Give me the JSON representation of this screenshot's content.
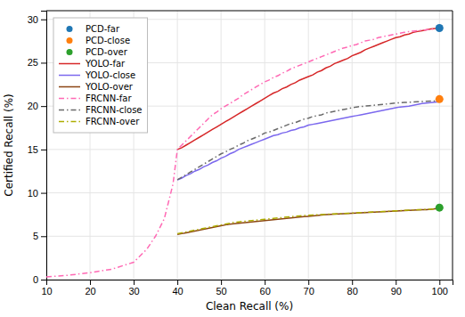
{
  "chart_data": {
    "type": "line",
    "xlabel": "Clean Recall (%)",
    "ylabel": "Certified Recall (%)",
    "xlim": [
      10,
      103
    ],
    "ylim": [
      0,
      31
    ],
    "xticks": [
      10,
      20,
      30,
      40,
      50,
      60,
      70,
      80,
      90,
      100
    ],
    "yticks": [
      0,
      5,
      10,
      15,
      20,
      25,
      30
    ],
    "grid": true,
    "legend": "upper left",
    "series": [
      {
        "name": "PCD-far",
        "type": "scatter",
        "color": "#1f77b4",
        "marker": "circle",
        "x": [
          100
        ],
        "values": [
          29.0
        ]
      },
      {
        "name": "PCD-close",
        "type": "scatter",
        "color": "#ff7f0e",
        "marker": "circle",
        "x": [
          100
        ],
        "values": [
          20.8
        ]
      },
      {
        "name": "PCD-over",
        "type": "scatter",
        "color": "#2ca02c",
        "marker": "circle",
        "x": [
          100
        ],
        "values": [
          8.3
        ]
      },
      {
        "name": "YOLO-far",
        "type": "line",
        "color": "#d62728",
        "line_style": "solid",
        "x": [
          40,
          41,
          42,
          43,
          44,
          45,
          46,
          47,
          48,
          49,
          50,
          51,
          52,
          53,
          54,
          55,
          56,
          57,
          58,
          59,
          60,
          61,
          62,
          63,
          64,
          65,
          66,
          67,
          68,
          69,
          70,
          71,
          72,
          73,
          74,
          75,
          76,
          77,
          78,
          79,
          80,
          81,
          82,
          83,
          84,
          85,
          86,
          87,
          88,
          89,
          90,
          91,
          92,
          93,
          94,
          95,
          96,
          97,
          98,
          99,
          100
        ],
        "values": [
          15.0,
          15.2,
          15.5,
          15.8,
          16.1,
          16.4,
          16.7,
          17.0,
          17.3,
          17.6,
          17.9,
          18.2,
          18.5,
          18.8,
          19.1,
          19.4,
          19.7,
          20.0,
          20.3,
          20.6,
          20.9,
          21.2,
          21.5,
          21.7,
          22.0,
          22.2,
          22.5,
          22.7,
          23.0,
          23.2,
          23.4,
          23.6,
          23.9,
          24.1,
          24.4,
          24.6,
          24.9,
          25.1,
          25.3,
          25.5,
          25.8,
          26.0,
          26.2,
          26.5,
          26.7,
          26.9,
          27.1,
          27.3,
          27.5,
          27.7,
          27.9,
          28.0,
          28.2,
          28.3,
          28.5,
          28.6,
          28.7,
          28.8,
          28.9,
          28.95,
          29.0
        ]
      },
      {
        "name": "YOLO-close",
        "type": "line",
        "color": "#7b68ee",
        "line_style": "solid",
        "x": [
          40,
          41,
          42,
          43,
          44,
          45,
          46,
          47,
          48,
          49,
          50,
          51,
          52,
          53,
          54,
          55,
          56,
          57,
          58,
          59,
          60,
          61,
          62,
          63,
          64,
          65,
          66,
          67,
          68,
          69,
          70,
          71,
          72,
          73,
          74,
          75,
          76,
          77,
          78,
          79,
          80,
          81,
          82,
          83,
          84,
          85,
          86,
          87,
          88,
          89,
          90,
          91,
          92,
          93,
          94,
          95,
          96,
          97,
          98,
          99,
          100
        ],
        "values": [
          11.5,
          11.7,
          12.0,
          12.2,
          12.5,
          12.7,
          13.0,
          13.2,
          13.5,
          13.7,
          14.0,
          14.2,
          14.5,
          14.7,
          15.0,
          15.2,
          15.4,
          15.6,
          15.8,
          16.0,
          16.2,
          16.4,
          16.6,
          16.7,
          16.9,
          17.0,
          17.2,
          17.3,
          17.5,
          17.6,
          17.8,
          17.9,
          18.0,
          18.1,
          18.2,
          18.3,
          18.4,
          18.5,
          18.6,
          18.7,
          18.8,
          18.9,
          19.0,
          19.1,
          19.2,
          19.3,
          19.4,
          19.5,
          19.6,
          19.7,
          19.8,
          19.9,
          19.95,
          20.0,
          20.1,
          20.2,
          20.3,
          20.35,
          20.4,
          20.45,
          20.5
        ]
      },
      {
        "name": "YOLO-over",
        "type": "line",
        "color": "#8b4513",
        "line_style": "solid",
        "x": [
          40,
          41,
          42,
          43,
          44,
          45,
          46,
          47,
          48,
          49,
          50,
          51,
          52,
          53,
          54,
          55,
          56,
          57,
          58,
          59,
          60,
          61,
          62,
          63,
          64,
          65,
          66,
          67,
          68,
          69,
          70,
          71,
          72,
          73,
          74,
          75,
          76,
          77,
          78,
          79,
          80,
          81,
          82,
          83,
          84,
          85,
          86,
          87,
          88,
          89,
          90,
          91,
          92,
          93,
          94,
          95,
          96,
          97,
          98,
          99,
          100
        ],
        "values": [
          5.2,
          5.3,
          5.4,
          5.5,
          5.6,
          5.7,
          5.8,
          5.9,
          6.0,
          6.1,
          6.2,
          6.3,
          6.4,
          6.45,
          6.5,
          6.55,
          6.6,
          6.65,
          6.7,
          6.75,
          6.8,
          6.85,
          6.9,
          6.95,
          7.0,
          7.05,
          7.1,
          7.15,
          7.2,
          7.25,
          7.3,
          7.35,
          7.4,
          7.45,
          7.5,
          7.52,
          7.55,
          7.57,
          7.6,
          7.62,
          7.65,
          7.67,
          7.7,
          7.72,
          7.75,
          7.77,
          7.8,
          7.82,
          7.85,
          7.87,
          7.9,
          7.92,
          7.95,
          7.97,
          8.0,
          8.02,
          8.05,
          8.07,
          8.1,
          8.15,
          8.2
        ]
      },
      {
        "name": "FRCNN-far",
        "type": "line",
        "color": "#ff69b4",
        "line_style": "dashdot",
        "x": [
          10,
          15,
          20,
          25,
          30,
          33,
          35,
          37,
          38,
          39,
          40,
          41,
          42,
          43,
          44,
          45,
          46,
          47,
          48,
          49,
          50,
          51,
          52,
          53,
          54,
          55,
          56,
          57,
          58,
          59,
          60,
          61,
          62,
          63,
          64,
          65,
          66,
          67,
          68,
          69,
          70,
          71,
          72,
          73,
          74,
          75,
          76,
          77,
          78,
          79,
          80,
          81,
          82,
          83,
          84,
          85,
          86,
          87,
          88,
          89,
          90,
          91,
          92,
          93,
          94,
          95,
          96,
          97,
          98,
          99,
          100
        ],
        "values": [
          0.3,
          0.5,
          0.8,
          1.2,
          2.0,
          3.5,
          5.0,
          7.0,
          9.0,
          11.0,
          15.0,
          15.5,
          16.0,
          16.5,
          17.0,
          17.5,
          18.0,
          18.5,
          19.0,
          19.3,
          19.7,
          20.0,
          20.3,
          20.6,
          20.9,
          21.3,
          21.6,
          21.9,
          22.2,
          22.5,
          22.8,
          23.0,
          23.3,
          23.5,
          23.8,
          24.0,
          24.3,
          24.5,
          24.7,
          24.9,
          25.1,
          25.3,
          25.5,
          25.7,
          25.9,
          26.1,
          26.3,
          26.5,
          26.7,
          26.8,
          27.0,
          27.1,
          27.3,
          27.5,
          27.6,
          27.7,
          27.9,
          28.0,
          28.1,
          28.2,
          28.3,
          28.4,
          28.5,
          28.6,
          28.65,
          28.7,
          28.75,
          28.8,
          28.85,
          28.9,
          28.9
        ]
      },
      {
        "name": "FRCNN-close",
        "type": "line",
        "color": "#696969",
        "line_style": "dashdot",
        "x": [
          40,
          41,
          42,
          43,
          44,
          45,
          46,
          47,
          48,
          49,
          50,
          51,
          52,
          53,
          54,
          55,
          56,
          57,
          58,
          59,
          60,
          61,
          62,
          63,
          64,
          65,
          66,
          67,
          68,
          69,
          70,
          71,
          72,
          73,
          74,
          75,
          76,
          77,
          78,
          79,
          80,
          81,
          82,
          83,
          84,
          85,
          86,
          87,
          88,
          89,
          90,
          91,
          92,
          93,
          94,
          95,
          96,
          97,
          98,
          99,
          100
        ],
        "values": [
          11.5,
          11.8,
          12.1,
          12.4,
          12.7,
          13.0,
          13.3,
          13.6,
          13.9,
          14.2,
          14.5,
          14.7,
          15.0,
          15.2,
          15.5,
          15.7,
          16.0,
          16.2,
          16.4,
          16.6,
          16.9,
          17.0,
          17.2,
          17.4,
          17.6,
          17.8,
          18.0,
          18.1,
          18.3,
          18.5,
          18.6,
          18.8,
          18.9,
          19.0,
          19.2,
          19.3,
          19.4,
          19.5,
          19.6,
          19.7,
          19.8,
          19.9,
          19.95,
          20.0,
          20.05,
          20.1,
          20.15,
          20.2,
          20.25,
          20.3,
          20.35,
          20.4,
          20.42,
          20.45,
          20.47,
          20.5,
          20.52,
          20.55,
          20.57,
          20.6,
          20.6
        ]
      },
      {
        "name": "FRCNN-over",
        "type": "line",
        "color": "#adad00",
        "line_style": "dashdot",
        "x": [
          40,
          41,
          42,
          43,
          44,
          45,
          46,
          47,
          48,
          49,
          50,
          51,
          52,
          53,
          54,
          55,
          56,
          57,
          58,
          59,
          60,
          61,
          62,
          63,
          64,
          65,
          66,
          67,
          68,
          69,
          70,
          71,
          72,
          73,
          74,
          75,
          76,
          77,
          78,
          79,
          80,
          81,
          82,
          83,
          84,
          85,
          86,
          87,
          88,
          89,
          90,
          91,
          92,
          93,
          94,
          95,
          96,
          97,
          98,
          99,
          100
        ],
        "values": [
          5.3,
          5.4,
          5.5,
          5.6,
          5.7,
          5.8,
          5.9,
          6.0,
          6.1,
          6.2,
          6.3,
          6.4,
          6.5,
          6.6,
          6.65,
          6.7,
          6.75,
          6.8,
          6.85,
          6.9,
          6.95,
          7.0,
          7.05,
          7.1,
          7.15,
          7.2,
          7.25,
          7.3,
          7.35,
          7.38,
          7.42,
          7.45,
          7.48,
          7.5,
          7.52,
          7.55,
          7.57,
          7.6,
          7.62,
          7.65,
          7.67,
          7.7,
          7.72,
          7.75,
          7.77,
          7.8,
          7.82,
          7.85,
          7.87,
          7.9,
          7.92,
          7.95,
          7.97,
          8.0,
          8.02,
          8.05,
          8.07,
          8.1,
          8.12,
          8.15,
          8.2
        ]
      }
    ]
  }
}
